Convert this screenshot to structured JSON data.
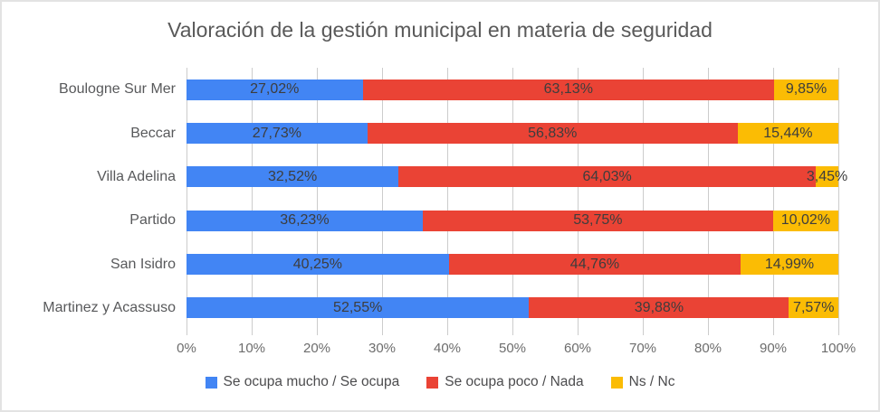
{
  "chart_data": {
    "type": "bar",
    "orientation": "horizontal",
    "stacked": true,
    "title": "Valoración de la gestión municipal en materia de seguridad",
    "categories": [
      "Boulogne Sur Mer",
      "Beccar",
      "Villa Adelina",
      "Partido",
      "San Isidro",
      "Martinez y Acassuso"
    ],
    "series": [
      {
        "name": "Se ocupa mucho / Se ocupa",
        "color": "#4285F4",
        "values": [
          27.02,
          27.73,
          32.52,
          36.23,
          40.25,
          52.55
        ],
        "labels": [
          "27,02%",
          "27,73%",
          "32,52%",
          "36,23%",
          "40,25%",
          "52,55%"
        ]
      },
      {
        "name": "Se ocupa poco / Nada",
        "color": "#EA4335",
        "values": [
          63.13,
          56.83,
          64.03,
          53.75,
          44.76,
          39.88
        ],
        "labels": [
          "63,13%",
          "56,83%",
          "64,03%",
          "53,75%",
          "44,76%",
          "39,88%"
        ]
      },
      {
        "name": "Ns / Nc",
        "color": "#FBBC04",
        "values": [
          9.85,
          15.44,
          3.45,
          10.02,
          14.99,
          7.57
        ],
        "labels": [
          "9,85%",
          "15,44%",
          "3,45%",
          "10,02%",
          "14,99%",
          "7,57%"
        ]
      }
    ],
    "x_axis": {
      "min": 0,
      "max": 100,
      "tick_step": 10,
      "ticks": [
        "0%",
        "10%",
        "20%",
        "30%",
        "40%",
        "50%",
        "60%",
        "70%",
        "80%",
        "90%",
        "100%"
      ]
    },
    "legend_position": "bottom",
    "grid": true,
    "gridline_color": "#cccccc",
    "data_label_color": "#3d3d3d"
  }
}
